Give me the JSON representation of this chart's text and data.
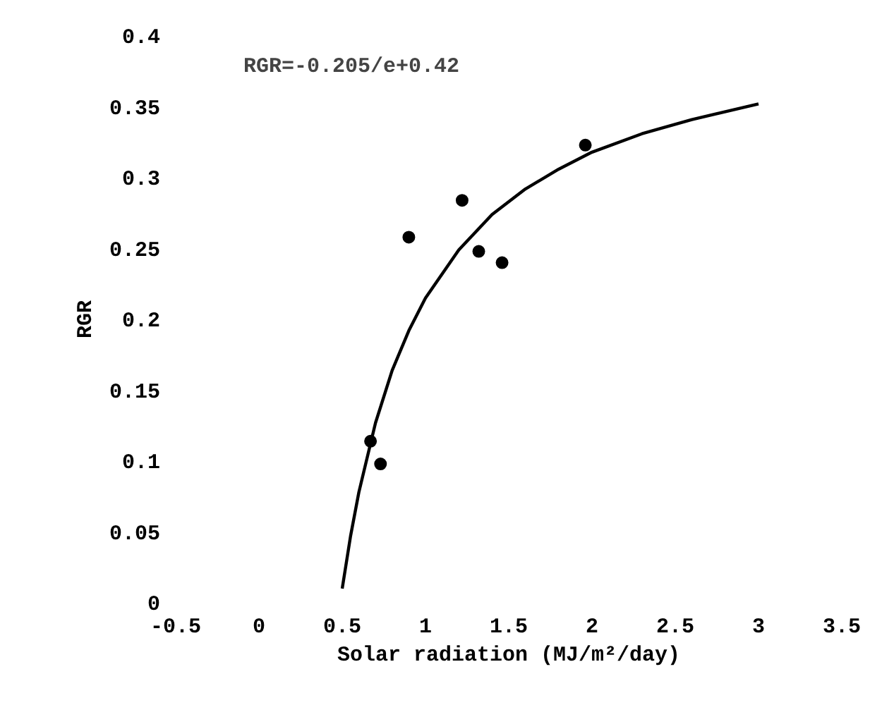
{
  "chart_data": {
    "type": "scatter",
    "xlabel": "Solar radiation (MJ/m²/day)",
    "ylabel": "RGR",
    "annotations": [
      "RGR=-0.205/e+0.42"
    ],
    "xlim": [
      -0.5,
      3.5
    ],
    "xticks": [
      -0.5,
      0,
      0.5,
      1,
      1.5,
      2,
      2.5,
      3,
      3.5
    ],
    "ylim": [
      0,
      0.4
    ],
    "yticks": [
      0,
      0.05,
      0.1,
      0.15,
      0.2,
      0.25,
      0.3,
      0.35,
      0.4
    ],
    "grid": false,
    "marker": "circle",
    "series": [
      {
        "color": "#000000",
        "x": [
          0.67,
          0.73,
          0.9,
          1.22,
          1.32,
          1.46,
          1.96
        ],
        "values": [
          0.114,
          0.098,
          0.258,
          0.284,
          0.248,
          0.24,
          0.323
        ]
      },
      {
        "type": "line",
        "color": "#000000",
        "line_style": "solid",
        "marker": "none",
        "x": [
          0.5,
          0.55,
          0.6,
          0.7,
          0.8,
          0.9,
          1.0,
          1.2,
          1.4,
          1.6,
          1.8,
          2.0,
          2.3,
          2.6,
          3.0
        ],
        "values": [
          0.01,
          0.047,
          0.078,
          0.127,
          0.164,
          0.192,
          0.215,
          0.249,
          0.274,
          0.292,
          0.306,
          0.318,
          0.331,
          0.341,
          0.352
        ]
      }
    ]
  }
}
